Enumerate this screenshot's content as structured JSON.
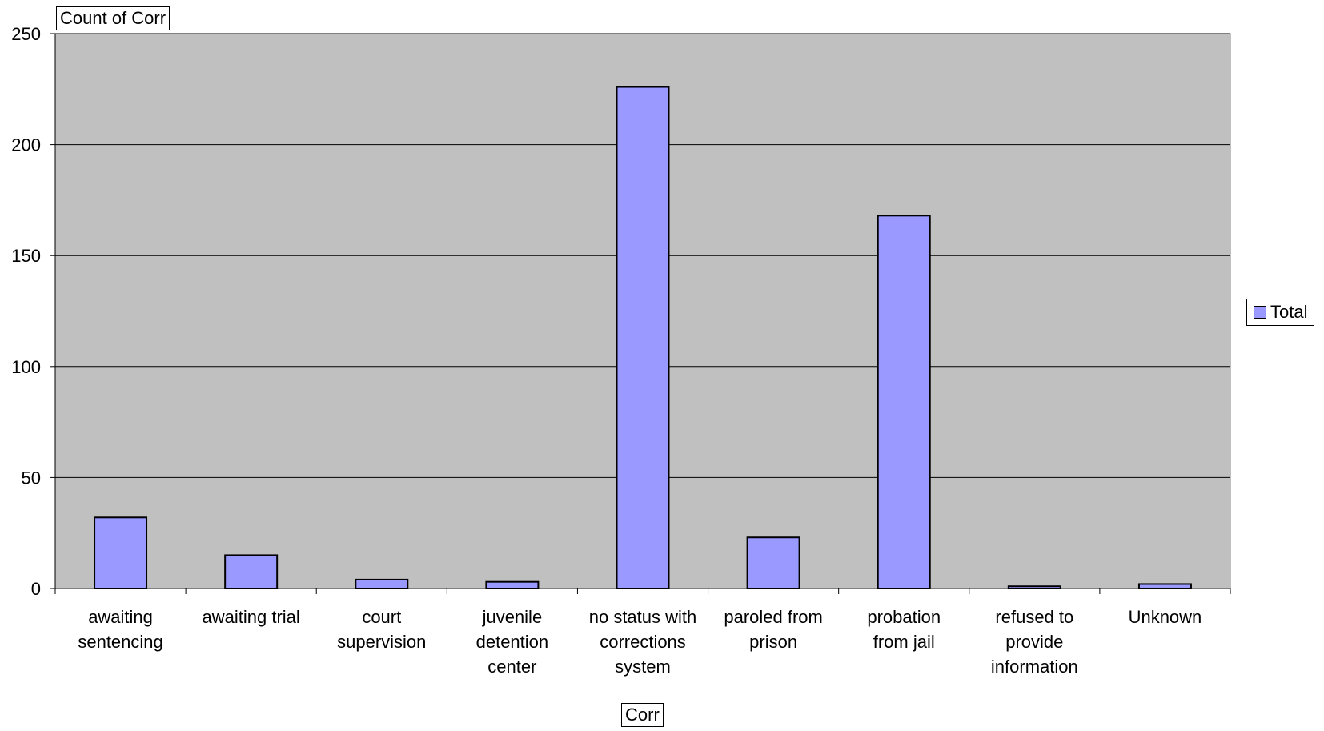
{
  "chart_data": {
    "type": "bar",
    "categories": [
      [
        "awaiting",
        "sentencing"
      ],
      [
        "awaiting trial"
      ],
      [
        "court",
        "supervision"
      ],
      [
        "juvenile",
        "detention",
        "center"
      ],
      [
        "no status with",
        "corrections",
        "system"
      ],
      [
        "paroled from",
        "prison"
      ],
      [
        "probation",
        "from jail"
      ],
      [
        "refused to",
        "provide",
        "information"
      ],
      [
        "Unknown"
      ]
    ],
    "series": [
      {
        "name": "Total",
        "values": [
          32,
          15,
          4,
          3,
          226,
          23,
          168,
          1,
          2
        ]
      }
    ],
    "ylim": [
      0,
      250
    ],
    "yticks": [
      0,
      50,
      100,
      150,
      200,
      250
    ],
    "y_field_label": "Count of Corr",
    "x_field_label": "Corr",
    "legend_position": "right",
    "grid": true,
    "colors": {
      "plot_background": "#c0c0c0",
      "bar_fill": "#9999ff",
      "bar_stroke": "#000000",
      "gridline": "#000000"
    }
  }
}
